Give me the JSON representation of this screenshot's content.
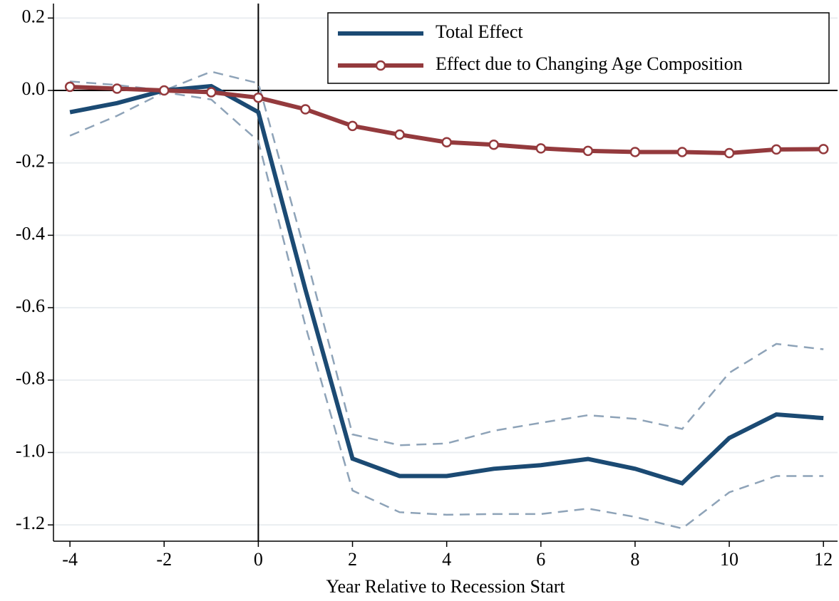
{
  "chart_data": {
    "type": "line",
    "xlabel": "Year Relative to Recession Start",
    "x": [
      -4,
      -3,
      -2,
      -1,
      0,
      1,
      2,
      3,
      4,
      5,
      6,
      7,
      8,
      9,
      10,
      11,
      12
    ],
    "series": [
      {
        "name": "Total Effect",
        "color": "#1b4a73",
        "marker": false,
        "values": [
          -0.06,
          -0.035,
          0.0,
          0.012,
          -0.06,
          -0.55,
          -1.017,
          -1.065,
          -1.065,
          -1.045,
          -1.035,
          -1.018,
          -1.045,
          -1.085,
          -0.96,
          -0.895,
          -0.905
        ]
      },
      {
        "name": "Effect due to Changing Age Composition",
        "color": "#943a3d",
        "marker": true,
        "values": [
          0.01,
          0.005,
          0.0,
          -0.005,
          -0.02,
          -0.052,
          -0.098,
          -0.122,
          -0.143,
          -0.15,
          -0.16,
          -0.167,
          -0.17,
          -0.17,
          -0.173,
          -0.163,
          -0.162
        ]
      }
    ],
    "ci": {
      "color": "#8ea3b8",
      "upper": [
        0.025,
        0.015,
        0.0,
        0.052,
        0.02,
        -0.45,
        -0.95,
        -0.98,
        -0.975,
        -0.94,
        -0.918,
        -0.897,
        -0.907,
        -0.935,
        -0.78,
        -0.7,
        -0.715
      ],
      "lower": [
        -0.125,
        -0.07,
        -0.005,
        -0.025,
        -0.14,
        -0.65,
        -1.105,
        -1.165,
        -1.172,
        -1.17,
        -1.17,
        -1.155,
        -1.178,
        -1.21,
        -1.11,
        -1.065,
        -1.065
      ]
    },
    "xlim": [
      -4.35,
      12.3
    ],
    "xticks": [
      -4,
      -2,
      0,
      2,
      4,
      6,
      8,
      10,
      12
    ],
    "ylim": [
      -1.245,
      0.24
    ],
    "yticks": [
      0.2,
      {
        "value": 0,
        "label": "0.0"
      },
      -0.2,
      -0.4,
      -0.6,
      -0.8,
      {
        "value": -1,
        "label": "-1.0"
      },
      -1.2
    ],
    "vline": 0,
    "hline": 0,
    "grid": true,
    "legend": "top-right"
  }
}
